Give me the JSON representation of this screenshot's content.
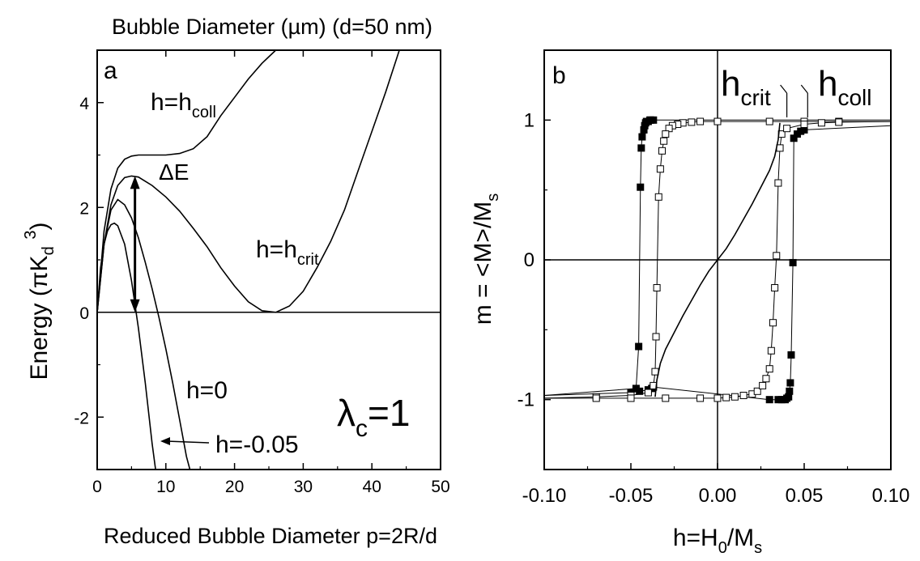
{
  "chart_data": [
    {
      "type": "line",
      "panel_label": "a",
      "top_axis_label": "Bubble Diameter (µm) (d=50 nm)",
      "xlabel": "Reduced Bubble Diameter p=2R/d",
      "ylabel_parts": [
        "Energy (πK",
        "d",
        "d",
        "3",
        ")"
      ],
      "xlim": [
        0,
        50
      ],
      "ylim": [
        -3,
        5
      ],
      "xticks": [
        0,
        10,
        20,
        30,
        40,
        50
      ],
      "yticks": [
        -2,
        0,
        2,
        4
      ],
      "series": [
        {
          "name": "h=h_coll",
          "x": [
            0,
            1,
            2,
            3,
            4,
            5,
            6,
            8,
            10,
            12,
            14,
            16,
            18,
            20,
            22,
            24,
            26
          ],
          "y": [
            0,
            1.55,
            2.35,
            2.75,
            2.92,
            2.98,
            3.0,
            3.0,
            3.0,
            3.03,
            3.12,
            3.35,
            3.75,
            4.1,
            4.45,
            4.75,
            5.0
          ]
        },
        {
          "name": "h=h_crit",
          "x": [
            0,
            1,
            2,
            3,
            4,
            5,
            6,
            7,
            8,
            10,
            12,
            14,
            16,
            18,
            20,
            22,
            24,
            26,
            28,
            30,
            32,
            34,
            36,
            38,
            40,
            42,
            44
          ],
          "y": [
            0,
            1.3,
            2.05,
            2.42,
            2.57,
            2.6,
            2.58,
            2.5,
            2.42,
            2.2,
            1.93,
            1.6,
            1.25,
            0.85,
            0.5,
            0.2,
            0.03,
            0.0,
            0.12,
            0.4,
            0.85,
            1.35,
            1.95,
            2.7,
            3.45,
            4.2,
            5.0
          ]
        },
        {
          "name": "h=0",
          "x": [
            0,
            1,
            2,
            3,
            4,
            5,
            6,
            7,
            8,
            9,
            10,
            11,
            12,
            13,
            13.5
          ],
          "y": [
            0,
            1.3,
            1.95,
            2.15,
            2.05,
            1.8,
            1.42,
            0.95,
            0.45,
            -0.1,
            -0.7,
            -1.35,
            -2.05,
            -2.75,
            -3.0
          ]
        },
        {
          "name": "h=-0.05",
          "x": [
            0,
            0.5,
            1,
            1.5,
            2,
            2.5,
            3,
            4,
            5,
            6,
            7,
            8,
            8.5
          ],
          "y": [
            0,
            0.85,
            1.3,
            1.55,
            1.67,
            1.7,
            1.65,
            1.3,
            0.6,
            -0.3,
            -1.35,
            -2.5,
            -3.0
          ]
        }
      ],
      "arrow": {
        "label": "ΔE",
        "x": 5.5,
        "y_from": 2.6,
        "y_to": 0
      },
      "annotations": {
        "coll_main": "h=h",
        "coll_sub": "coll",
        "crit_main": "h=h",
        "crit_sub": "crit",
        "zero": "h=0",
        "neg": "h=-0.05",
        "lambda_main": "λ",
        "lambda_sub": "c",
        "lambda_tail": "=1"
      },
      "zero_line": true
    },
    {
      "type": "scatter",
      "panel_label": "b",
      "xlabel_parts": [
        "h=H",
        "0",
        "/M",
        "s"
      ],
      "ylabel_parts": [
        "m = <M>/M",
        "s"
      ],
      "xlim": [
        -0.1,
        0.1
      ],
      "ylim": [
        -1.5,
        1.5
      ],
      "xticks": [
        -0.1,
        -0.05,
        0.0,
        0.05,
        0.1
      ],
      "xtick_labels": [
        "-0.10",
        "-0.05",
        "0.00",
        "0.05",
        "0.10"
      ],
      "yticks": [
        -1,
        0,
        1
      ],
      "ytick_labels": [
        "-1",
        "0",
        "1"
      ],
      "markers": [
        {
          "name": "h_crit",
          "main": "h",
          "sub": "crit",
          "x": 0.04
        },
        {
          "name": "h_coll",
          "main": "h",
          "sub": "coll",
          "x": 0.052
        }
      ],
      "series": [
        {
          "name": "filled-descending",
          "marker": "filled-square",
          "x": [
            0.1,
            -0.037,
            -0.0385,
            -0.039,
            -0.04,
            -0.041,
            -0.0415,
            -0.042,
            -0.0425,
            -0.0435,
            -0.044,
            -0.0445,
            -0.0455,
            -0.047,
            -0.1
          ],
          "y": [
            1.0,
            1.0,
            1.0,
            1.0,
            0.99,
            0.99,
            0.98,
            0.96,
            0.93,
            0.88,
            0.8,
            0.52,
            -0.62,
            -0.92,
            -0.97
          ]
        },
        {
          "name": "filled-ascending",
          "marker": "filled-square",
          "x": [
            -0.1,
            -0.05,
            -0.045,
            -0.04,
            -0.038,
            -0.037,
            0.03,
            0.035,
            0.037,
            0.039,
            0.04,
            0.041,
            0.0415,
            0.042,
            0.0425,
            0.0435,
            0.044,
            0.046,
            0.048,
            0.05,
            0.1
          ],
          "y": [
            -0.97,
            -0.95,
            -0.94,
            -0.93,
            -0.92,
            -0.91,
            -1.0,
            -1.0,
            -1.0,
            -1.0,
            -0.99,
            -0.98,
            -0.94,
            -0.88,
            -0.68,
            -0.02,
            0.87,
            0.9,
            0.92,
            0.93,
            0.96
          ]
        },
        {
          "name": "open-descending",
          "marker": "open-square",
          "x": [
            0.1,
            0.07,
            0.05,
            0.03,
            0.0,
            -0.01,
            -0.015,
            -0.02,
            -0.023,
            -0.026,
            -0.028,
            -0.03,
            -0.031,
            -0.032,
            -0.033,
            -0.034,
            -0.035,
            -0.0355,
            -0.036,
            -0.037,
            -0.04,
            -0.05,
            -0.07,
            -0.1
          ],
          "y": [
            0.99,
            0.99,
            0.99,
            0.99,
            0.99,
            0.99,
            0.985,
            0.98,
            0.97,
            0.96,
            0.94,
            0.9,
            0.85,
            0.78,
            0.65,
            0.45,
            -0.2,
            -0.55,
            -0.8,
            -0.9,
            -0.95,
            -0.97,
            -0.98,
            -0.99
          ]
        },
        {
          "name": "open-ascending",
          "marker": "open-square",
          "x": [
            -0.1,
            -0.07,
            -0.05,
            -0.03,
            -0.01,
            0.0,
            0.005,
            0.01,
            0.015,
            0.02,
            0.023,
            0.026,
            0.028,
            0.03,
            0.031,
            0.032,
            0.033,
            0.034,
            0.035,
            0.036,
            0.037,
            0.04,
            0.05,
            0.06,
            0.07,
            0.1
          ],
          "y": [
            -0.99,
            -0.99,
            -0.99,
            -0.99,
            -0.99,
            -0.99,
            -0.985,
            -0.98,
            -0.97,
            -0.96,
            -0.94,
            -0.9,
            -0.85,
            -0.78,
            -0.65,
            -0.45,
            -0.2,
            0.03,
            0.55,
            0.8,
            0.9,
            0.94,
            0.97,
            0.98,
            0.985,
            0.99
          ]
        },
        {
          "name": "solid-curve",
          "marker": "none",
          "x": [
            -0.036,
            -0.035,
            -0.033,
            -0.03,
            -0.025,
            -0.02,
            -0.015,
            -0.01,
            -0.005,
            0.0,
            0.005,
            0.01,
            0.015,
            0.02,
            0.025,
            0.03,
            0.033,
            0.035,
            0.036
          ],
          "y": [
            -0.98,
            -0.86,
            -0.74,
            -0.64,
            -0.52,
            -0.4,
            -0.29,
            -0.18,
            -0.08,
            0.0,
            0.08,
            0.18,
            0.29,
            0.4,
            0.52,
            0.64,
            0.74,
            0.86,
            0.98
          ]
        }
      ]
    }
  ]
}
